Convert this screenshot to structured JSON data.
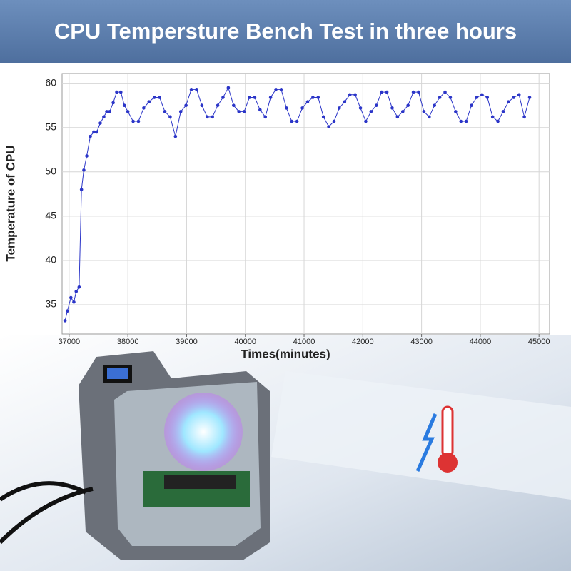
{
  "chart_data": {
    "type": "line",
    "title": "CPU Tempersture Bench Test in three hours",
    "x_label": "Times(minutes)",
    "y_label": "Temperature of CPU",
    "x": [
      36930,
      36970,
      37030,
      37080,
      37120,
      37170,
      37210,
      37250,
      37300,
      37360,
      37420,
      37470,
      37530,
      37590,
      37640,
      37690,
      37750,
      37810,
      37880,
      37940,
      38000,
      38090,
      38180,
      38270,
      38360,
      38450,
      38540,
      38630,
      38720,
      38810,
      38900,
      38990,
      39080,
      39170,
      39260,
      39350,
      39440,
      39530,
      39620,
      39710,
      39800,
      39890,
      39980,
      40070,
      40160,
      40250,
      40340,
      40430,
      40520,
      40610,
      40700,
      40790,
      40880,
      40970,
      41060,
      41150,
      41240,
      41330,
      41420,
      41510,
      41600,
      41690,
      41780,
      41870,
      41960,
      42050,
      42140,
      42230,
      42320,
      42410,
      42500,
      42590,
      42680,
      42770,
      42860,
      42950,
      43040,
      43130,
      43220,
      43310,
      43400,
      43490,
      43580,
      43670,
      43760,
      43850,
      43940,
      44030,
      44120,
      44210,
      44300,
      44390,
      44480,
      44570,
      44660,
      44750,
      44840
    ],
    "series": [
      {
        "name": "CPU",
        "color": "#2b35c8",
        "values": [
          33.2,
          34.3,
          35.8,
          35.3,
          36.5,
          37,
          48,
          50.2,
          51.8,
          54,
          54.5,
          54.5,
          55.5,
          56.2,
          56.8,
          56.8,
          57.8,
          59,
          59,
          57.5,
          56.8,
          55.7,
          55.7,
          57.2,
          57.9,
          58.4,
          58.4,
          56.8,
          56.2,
          54,
          56.8,
          57.5,
          59.3,
          59.3,
          57.5,
          56.2,
          56.2,
          57.5,
          58.4,
          59.5,
          57.5,
          56.8,
          56.8,
          58.4,
          58.4,
          57,
          56.2,
          58.4,
          59.3,
          59.3,
          57.2,
          55.7,
          55.7,
          57.2,
          57.9,
          58.4,
          58.4,
          56.2,
          55.1,
          55.7,
          57.2,
          57.9,
          58.7,
          58.7,
          57.2,
          55.7,
          56.8,
          57.5,
          59,
          59,
          57.2,
          56.2,
          56.8,
          57.5,
          59,
          59,
          56.8,
          56.2,
          57.5,
          58.4,
          59,
          58.4,
          56.8,
          55.7,
          55.7,
          57.5,
          58.4,
          58.7,
          58.4,
          56.2,
          55.7,
          56.8,
          57.9,
          58.4,
          58.7,
          56.2,
          58.4
        ]
      }
    ],
    "xlim": [
      36880,
      45180
    ],
    "ylim": [
      31.7,
      61.1
    ],
    "xticks": [
      37000,
      38000,
      39000,
      40000,
      41000,
      42000,
      43000,
      44000,
      45000
    ],
    "yticks": [
      35,
      40,
      45,
      50,
      55,
      60
    ],
    "grid": true
  }
}
